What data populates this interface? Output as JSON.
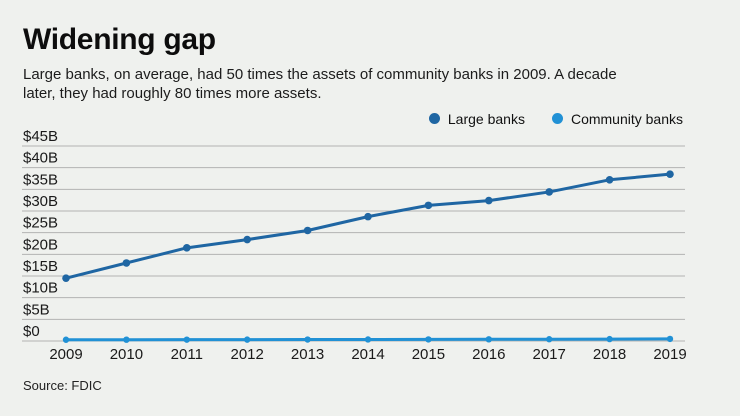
{
  "header": {
    "title": "Widening gap",
    "subtitle": "Large banks, on average, had 50 times the assets of community banks in 2009. A decade later, they had roughly 80 times more assets."
  },
  "legend": [
    {
      "label": "Large banks",
      "color": "#1f66a3"
    },
    {
      "label": "Community banks",
      "color": "#2191d5"
    }
  ],
  "chart_data": {
    "type": "line",
    "x": [
      "2009",
      "2010",
      "2011",
      "2012",
      "2013",
      "2014",
      "2015",
      "2016",
      "2017",
      "2018",
      "2019"
    ],
    "series": [
      {
        "name": "Large banks",
        "color": "#1f66a3",
        "values": [
          14.5,
          18.0,
          21.5,
          23.4,
          25.5,
          28.7,
          31.3,
          32.4,
          34.4,
          37.2,
          38.5
        ]
      },
      {
        "name": "Community banks",
        "color": "#2191d5",
        "values": [
          0.29,
          0.3,
          0.31,
          0.32,
          0.34,
          0.35,
          0.37,
          0.39,
          0.41,
          0.44,
          0.48
        ]
      }
    ],
    "ylabel": "",
    "xlabel": "",
    "ylim": [
      0,
      45
    ],
    "ytick_step": 5,
    "ytick_labels": [
      "$0",
      "$5B",
      "$10B",
      "$15B",
      "$20B",
      "$25B",
      "$30B",
      "$35B",
      "$40B",
      "$45B"
    ],
    "grid": true,
    "gridline_color": "#b3b3b3",
    "legend_position": "top-right",
    "units": "billions of dollars"
  },
  "source": {
    "text": "Source: FDIC"
  }
}
